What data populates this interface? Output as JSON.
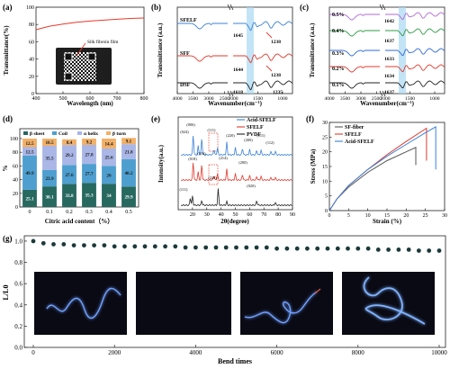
{
  "panels": [
    {
      "letter": "(a)"
    },
    {
      "letter": "(b)"
    },
    {
      "letter": "(c)"
    },
    {
      "letter": "(d)"
    },
    {
      "letter": "(e)"
    },
    {
      "letter": "(f)"
    },
    {
      "letter": "(g)"
    }
  ],
  "chart_data": [
    {
      "panel": "(a)",
      "type": "line",
      "xlabel": "Wavelength (nm)",
      "ylabel": "Transmittance(%)",
      "xlim": [
        400,
        800
      ],
      "ylim": [
        0,
        100
      ],
      "xticks": [
        "400",
        "500",
        "600",
        "700",
        "800"
      ],
      "yticks": [
        "0",
        "20",
        "40",
        "60",
        "80",
        "100"
      ],
      "series": [
        {
          "color": "#e8392a",
          "x": [
            400,
            450,
            500,
            550,
            600,
            650,
            700,
            750,
            800
          ],
          "y": [
            74,
            78,
            80.5,
            82.5,
            84,
            85,
            86,
            87,
            87.5
          ]
        }
      ],
      "inset_photo_label": "Silk fibroin film"
    },
    {
      "panel": "(b)",
      "type": "line",
      "xlabel": "Wavenumber(cm⁻¹)",
      "ylabel": "Transmittance (a.u.)",
      "xticks": [
        "4000",
        "3500",
        "3000",
        "2500",
        "2000",
        "1500",
        "1000"
      ],
      "series_labels": [
        "SFELF",
        "SFF",
        "DSF"
      ],
      "series_colors": [
        "#3a82d8",
        "#e03a2e",
        "#222222"
      ],
      "peak_labels": [
        "1645",
        "1238",
        "1644",
        "1238",
        "1618",
        "1235"
      ],
      "highlight_band": [
        1700,
        1600
      ]
    },
    {
      "panel": "(c)",
      "type": "line",
      "xlabel": "Wavenumber(cm⁻¹)",
      "ylabel": "Transmittance (a.u.)",
      "xticks": [
        "4000",
        "3500",
        "3000",
        "2500",
        "2000",
        "1500",
        "1000"
      ],
      "series_labels": [
        "0.5%",
        "0.4%",
        "0.3%",
        "0.2%",
        "0.1%"
      ],
      "series_colors": [
        "#b06ad8",
        "#2e9a45",
        "#2e6ad8",
        "#e03a2e",
        "#222222"
      ],
      "peak_labels": [
        "1642",
        "1637",
        "1633",
        "1634",
        "1637"
      ],
      "highlight_band": [
        1700,
        1600
      ]
    },
    {
      "panel": "(d)",
      "type": "bar",
      "xlabel": "Citric acid content（%）",
      "ylabel": "%",
      "ylim": [
        0,
        100
      ],
      "yticks": [
        "0",
        "20",
        "40",
        "60",
        "80",
        "100"
      ],
      "categories": [
        "0",
        "0.1",
        "0.2",
        "0.3",
        "0.4",
        "0.5"
      ],
      "legend": [
        "β sheet",
        "Coil",
        "α helix",
        "β turn"
      ],
      "series": [
        {
          "name": "β sheet",
          "color": "#27685f",
          "values": [
            25.1,
            30.1,
            33.8,
            35.3,
            34,
            29.9
          ]
        },
        {
          "name": "Coil",
          "color": "#4e9fcf",
          "values": [
            49.9,
            23.9,
            27.6,
            27.7,
            26,
            40.2
          ]
        },
        {
          "name": "α helix",
          "color": "#aab6e6",
          "values": [
            12.5,
            35.5,
            29.2,
            27.8,
            25.6,
            21.8
          ]
        },
        {
          "name": "β turn",
          "color": "#f2b068",
          "values": [
            12.5,
            10.5,
            8.4,
            9.2,
            14.4,
            9.1
          ]
        }
      ],
      "labels": [
        [
          "25.1",
          "30.1",
          "33.8",
          "35.3",
          "34",
          "29.9"
        ],
        [
          "49.9",
          "23.9",
          "27.6",
          "27.7",
          "26",
          "40.2"
        ],
        [
          "12.5",
          "35.5",
          "29.2",
          "27.8",
          "25.6",
          "21.8"
        ],
        [
          "12.5",
          "10.5",
          "8.4",
          "9.2",
          "14.4",
          "9.1"
        ]
      ]
    },
    {
      "panel": "(e)",
      "type": "line",
      "xlabel": "2θ(degree)",
      "ylabel": "Intensity(a.u.)",
      "xlim": [
        10,
        90
      ],
      "xticks": [
        "20",
        "30",
        "40",
        "50",
        "60",
        "70",
        "80",
        "90"
      ],
      "legend": [
        "Acid-SFELF",
        "SFELF",
        "PVDF"
      ],
      "series_colors": [
        "#3a82d8",
        "#e03a2e",
        "#222222"
      ],
      "peak_labels": [
        "(024)",
        "(006)",
        "(111)",
        "(220)",
        "(200)",
        "(111)",
        "(112)",
        "(018)",
        "(116)",
        "(214)",
        "(200)",
        "(111)",
        "(220)",
        "(020)"
      ]
    },
    {
      "panel": "(f)",
      "type": "line",
      "xlabel": "Strain (%)",
      "ylabel": "Stress (MPa)",
      "xlim": [
        0,
        30
      ],
      "ylim": [
        0,
        30
      ],
      "xticks": [
        "0",
        "5",
        "10",
        "15",
        "20",
        "25",
        "30"
      ],
      "yticks": [
        "0",
        "5",
        "10",
        "15",
        "20",
        "25",
        "30"
      ],
      "series": [
        {
          "name": "SF-fiber",
          "color": "#555555",
          "x": [
            0,
            2,
            5,
            10,
            15,
            20,
            22.5
          ],
          "y": [
            0,
            4,
            8,
            13,
            17,
            20,
            21.5
          ]
        },
        {
          "name": "SFELF",
          "color": "#e03a2e",
          "x": [
            0,
            2,
            5,
            10,
            15,
            20,
            25.3
          ],
          "y": [
            0,
            4,
            8.5,
            14,
            19,
            23.5,
            28
          ]
        },
        {
          "name": "Acid-SFELF",
          "color": "#3a82d8",
          "x": [
            0,
            2,
            5,
            10,
            15,
            20,
            25,
            27.7
          ],
          "y": [
            0,
            4,
            8.5,
            14,
            18.5,
            22.5,
            26.5,
            28.5
          ]
        }
      ],
      "end_drops": [
        {
          "x": 22.5,
          "y_to": 15.5
        },
        {
          "x": 25.3,
          "y_to": 17
        },
        {
          "x": 27.7,
          "y_to": 14
        }
      ]
    },
    {
      "panel": "(g)",
      "type": "scatter",
      "xlabel": "Bend times",
      "ylabel": "L/L0",
      "xlim": [
        0,
        10000
      ],
      "ylim": [
        0.0,
        1.05
      ],
      "xticks": [
        "0",
        "2000",
        "4000",
        "6000",
        "8000",
        "10000"
      ],
      "yticks": [
        "0.0",
        "0.2",
        "0.4",
        "0.6",
        "0.8",
        "1.0"
      ],
      "marker_color": "#1d3a3a",
      "x": [
        0,
        250,
        500,
        750,
        1000,
        1250,
        1500,
        1750,
        2000,
        2250,
        2500,
        2750,
        3000,
        3250,
        3500,
        3750,
        4000,
        4250,
        4500,
        4750,
        5000,
        5250,
        5500,
        5750,
        6000,
        6250,
        6500,
        6750,
        7000,
        7250,
        7500,
        7750,
        8000,
        8250,
        8500,
        8750,
        9000,
        9250,
        9500,
        9750,
        10000
      ],
      "y": [
        1.0,
        0.98,
        0.97,
        0.97,
        0.96,
        0.96,
        0.96,
        0.96,
        0.95,
        0.95,
        0.95,
        0.95,
        0.95,
        0.95,
        0.95,
        0.94,
        0.94,
        0.94,
        0.94,
        0.94,
        0.94,
        0.94,
        0.94,
        0.94,
        0.93,
        0.93,
        0.93,
        0.93,
        0.93,
        0.93,
        0.93,
        0.93,
        0.93,
        0.93,
        0.92,
        0.92,
        0.92,
        0.92,
        0.91,
        0.91,
        0.91
      ]
    }
  ]
}
